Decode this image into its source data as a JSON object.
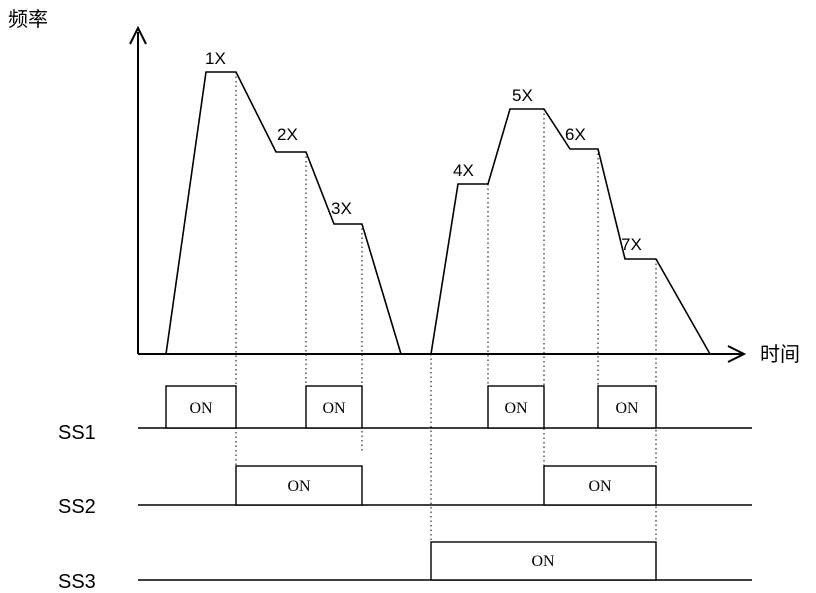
{
  "y_axis_label": "频率",
  "x_axis_label": "时间",
  "step_labels": [
    "1X",
    "2X",
    "3X",
    "4X",
    "5X",
    "6X",
    "7X"
  ],
  "signals": [
    {
      "name": "SS1",
      "pulses": [
        "ON",
        "ON",
        "ON",
        "ON"
      ]
    },
    {
      "name": "SS2",
      "pulses": [
        "ON",
        "ON"
      ]
    },
    {
      "name": "SS3",
      "pulses": [
        "ON"
      ]
    }
  ]
}
